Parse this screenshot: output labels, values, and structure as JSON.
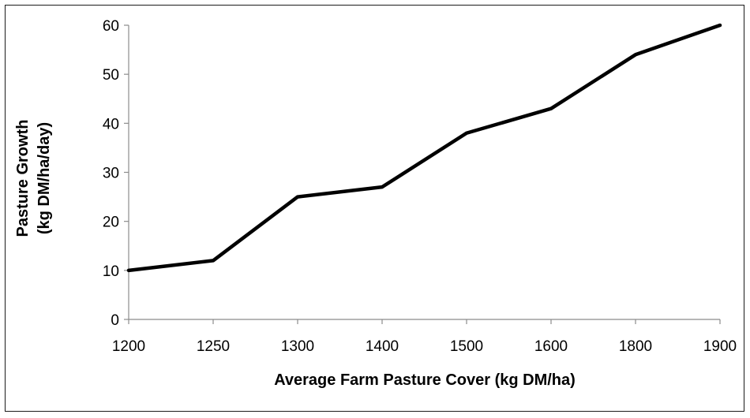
{
  "chart_data": {
    "type": "line",
    "categories": [
      "1200",
      "1250",
      "1300",
      "1400",
      "1500",
      "1600",
      "1800",
      "1900"
    ],
    "series": [
      {
        "values": [
          10,
          12,
          25,
          27,
          38,
          43,
          54,
          60
        ],
        "color": "#000000"
      }
    ],
    "xlabel": "Average Farm Pasture Cover (kg DM/ha)",
    "ylabel_line1": "Pasture Growth",
    "ylabel_line2": "(kg DM/ha/day)",
    "ylim": [
      0,
      60
    ],
    "yticks": [
      0,
      10,
      20,
      30,
      40,
      50,
      60
    ],
    "grid": false,
    "legend": "none"
  }
}
